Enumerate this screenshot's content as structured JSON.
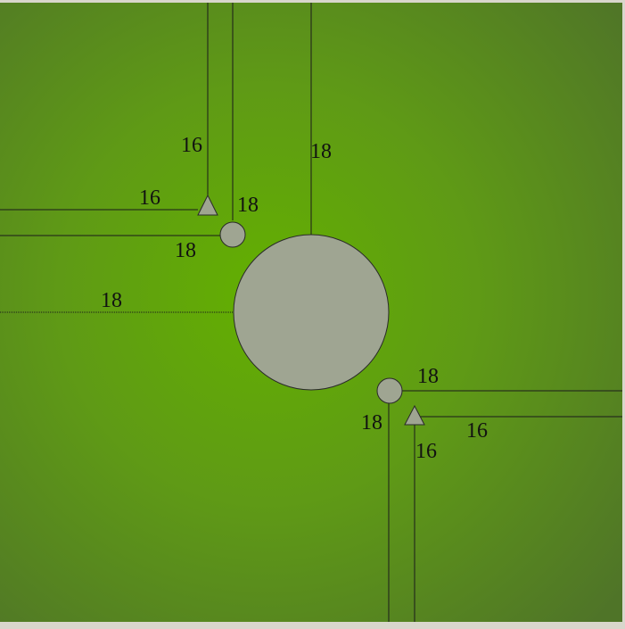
{
  "colors": {
    "field_center": "#63b000",
    "field_mid": "#5f9a16",
    "field_edge": "#4f7428",
    "shape_fill": "#9fa592",
    "line": "#1a1a1a"
  },
  "labels": {
    "top_vertical": "18",
    "upper_triangle_vertical": "16",
    "upper_triangle_horizontal": "16",
    "upper_circle_right": "18",
    "upper_circle_left": "18",
    "center_left": "18",
    "lower_circle_top": "18",
    "lower_circle_left": "18",
    "lower_triangle_right": "16",
    "lower_triangle_below": "16"
  }
}
